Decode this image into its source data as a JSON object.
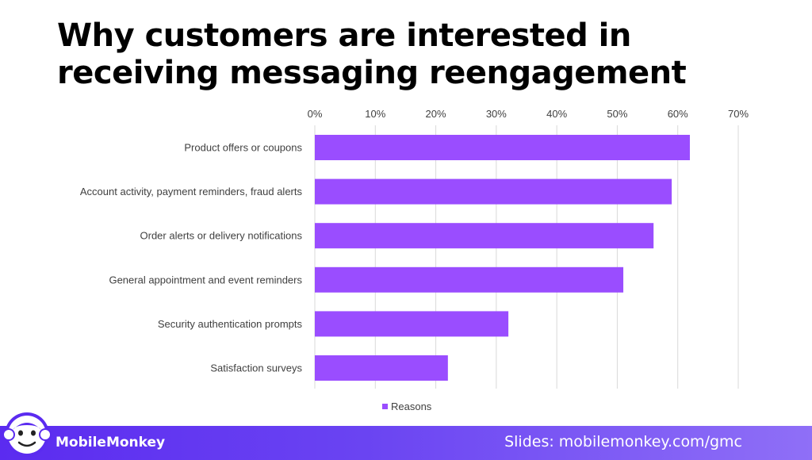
{
  "title": "Why customers are interested in receiving messaging reengagement",
  "footer": {
    "brand": "MobileMonkey",
    "slides_link": "Slides: mobilemonkey.com/gmc"
  },
  "colors": {
    "bar": "#9a4dff",
    "footer_start": "#5b2bf0",
    "footer_end": "#8f6ff7",
    "grid": "#d9d9d9",
    "text": "#404040"
  },
  "logo_icon": "monkey-icon",
  "chart_data": {
    "type": "bar",
    "orientation": "horizontal",
    "categories": [
      "Product offers or coupons",
      "Account activity, payment reminders, fraud alerts",
      "Order alerts or delivery notifications",
      "General appointment and event reminders",
      "Security authentication prompts",
      "Satisfaction surveys"
    ],
    "series": [
      {
        "name": "Reasons",
        "values": [
          62,
          59,
          56,
          51,
          32,
          22
        ]
      }
    ],
    "xlim": [
      0,
      70
    ],
    "xticks": [
      0,
      10,
      20,
      30,
      40,
      50,
      60,
      70
    ],
    "tick_format": "percent",
    "axis_position": "top",
    "grid": true,
    "legend": "bottom"
  }
}
